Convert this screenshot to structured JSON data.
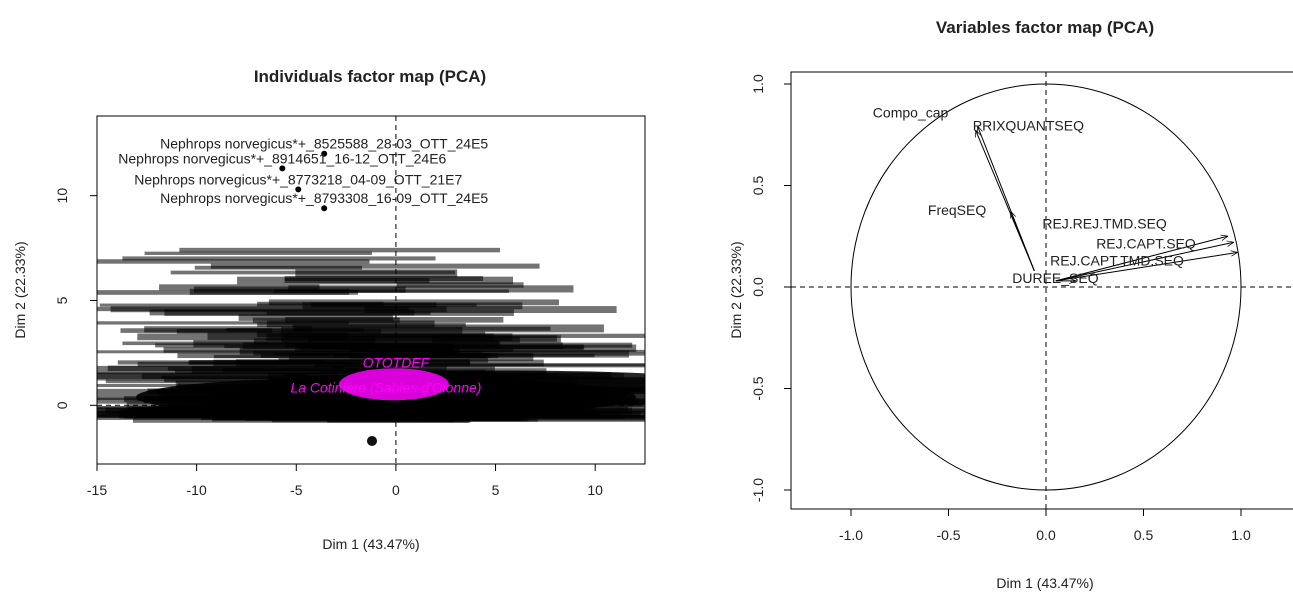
{
  "chart_data": [
    {
      "type": "scatter",
      "title": "Individuals factor map (PCA)",
      "xlabel": "Dim 1 (43.47%)",
      "ylabel": "Dim 2 (22.33%)",
      "xlim": [
        -15,
        12.5
      ],
      "ylim": [
        -2.8,
        13.8
      ],
      "xticks": [
        -15,
        -10,
        -5,
        0,
        5,
        10
      ],
      "yticks": [
        0,
        5,
        10
      ],
      "grid": false,
      "points": [
        {
          "label": "Nephrops norvegicus*+_8525588_28-03_OTT_24E5",
          "x": -3.6,
          "y": 12.0
        },
        {
          "label": "Nephrops norvegicus*+_8914651_16-12_OTT_24E6",
          "x": -5.7,
          "y": 11.3
        },
        {
          "label": "Nephrops norvegicus*+_8773218_04-09_OTT_21E7",
          "x": -4.9,
          "y": 10.3
        },
        {
          "label": "Nephrops norvegicus*+_8793308_16-09_OTT_24E5",
          "x": -3.6,
          "y": 9.4
        }
      ],
      "supplementary": [
        {
          "label": "OTOTDEF",
          "x": 0.0,
          "y": 1.8
        },
        {
          "label": "La Cotinière (Sables d'Olonne)",
          "x": -0.5,
          "y": 0.6
        }
      ]
    },
    {
      "type": "scatter",
      "title": "Variables factor map (PCA)",
      "xlabel": "Dim 1 (43.47%)",
      "ylabel": "Dim 2 (22.33%)",
      "xlim": [
        -1.2,
        1.2
      ],
      "ylim": [
        -1.1,
        1.1
      ],
      "xticks": [
        -1.0,
        -0.5,
        0.0,
        0.5,
        1.0
      ],
      "yticks": [
        -1.0,
        -0.5,
        0.0,
        0.5,
        1.0
      ],
      "grid": false,
      "variables": [
        {
          "label": "Compo_cap",
          "x": -0.36,
          "y": 0.77
        },
        {
          "label": "PRIXQUANTSEQ",
          "x": -0.35,
          "y": 0.79
        },
        {
          "label": "FreqSEQ",
          "x": -0.18,
          "y": 0.37
        },
        {
          "label": "REJ.REJ.TMD.SEQ",
          "x": 0.93,
          "y": 0.25
        },
        {
          "label": "REJ.CAPT.SEQ",
          "x": 0.96,
          "y": 0.22
        },
        {
          "label": "REJ.CAPT.TMD.SEQ",
          "x": 0.98,
          "y": 0.17
        },
        {
          "label": "DUREE_SEQ",
          "x": 0.15,
          "y": 0.03
        }
      ]
    }
  ]
}
